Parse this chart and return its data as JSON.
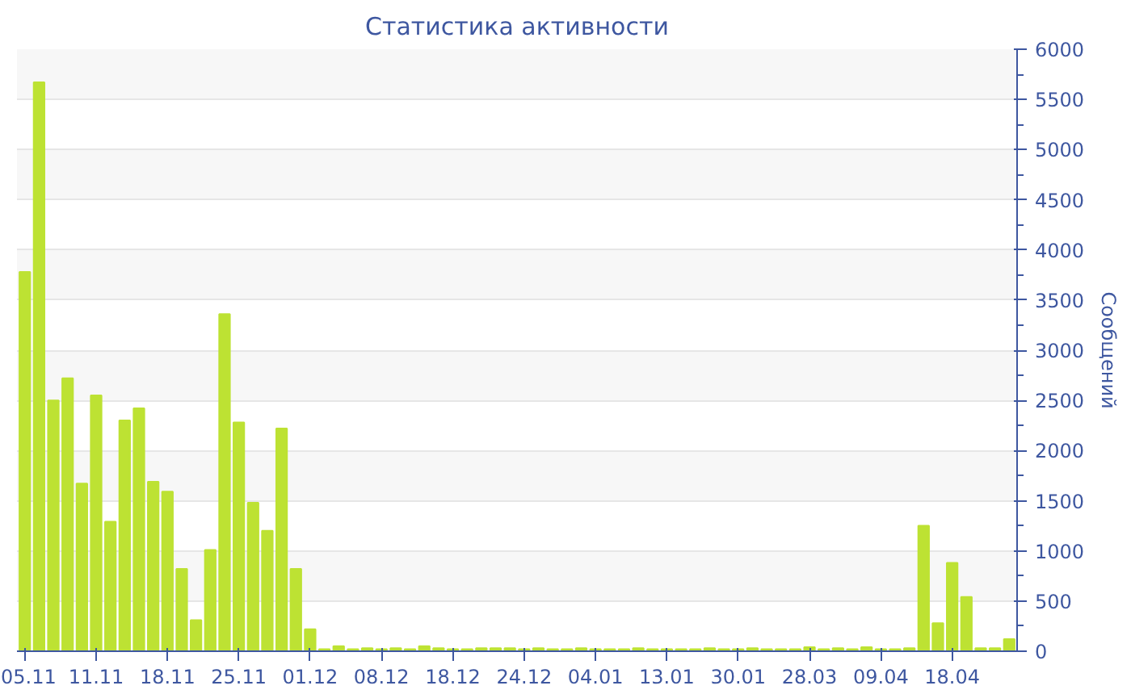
{
  "chart_data": {
    "type": "bar",
    "title": "Статистика активности",
    "ylabel": "Сообщений",
    "categories": [
      "05.11",
      null,
      null,
      null,
      null,
      "11.11",
      null,
      null,
      null,
      null,
      "18.11",
      null,
      null,
      null,
      null,
      "25.11",
      null,
      null,
      null,
      null,
      "01.12",
      null,
      null,
      null,
      null,
      "08.12",
      null,
      null,
      null,
      null,
      "18.12",
      null,
      null,
      null,
      null,
      "24.12",
      null,
      null,
      null,
      null,
      "04.01",
      null,
      null,
      null,
      null,
      "13.01",
      null,
      null,
      null,
      null,
      "30.01",
      null,
      null,
      null,
      null,
      "28.03",
      null,
      null,
      null,
      null,
      "09.04",
      null,
      null,
      null,
      null,
      "18.04",
      null,
      null,
      null,
      null
    ],
    "values": [
      3780,
      5670,
      2500,
      2720,
      1670,
      2550,
      1290,
      2300,
      2420,
      1690,
      1590,
      820,
      310,
      1010,
      3360,
      2280,
      1480,
      1200,
      2220,
      820,
      220,
      20,
      50,
      20,
      30,
      20,
      30,
      20,
      50,
      30,
      20,
      20,
      30,
      30,
      30,
      20,
      30,
      20,
      20,
      30,
      20,
      20,
      20,
      30,
      20,
      20,
      20,
      20,
      30,
      20,
      20,
      30,
      20,
      20,
      20,
      40,
      20,
      30,
      20,
      40,
      20,
      20,
      30,
      1250,
      280,
      880,
      540,
      30,
      30,
      120
    ],
    "color": "#bde233",
    "ylim": [
      0,
      6000
    ],
    "yticks": [
      0,
      500,
      1000,
      1500,
      2000,
      2500,
      3000,
      3500,
      4000,
      4500,
      5000,
      5500,
      6000
    ],
    "grid": "y"
  }
}
